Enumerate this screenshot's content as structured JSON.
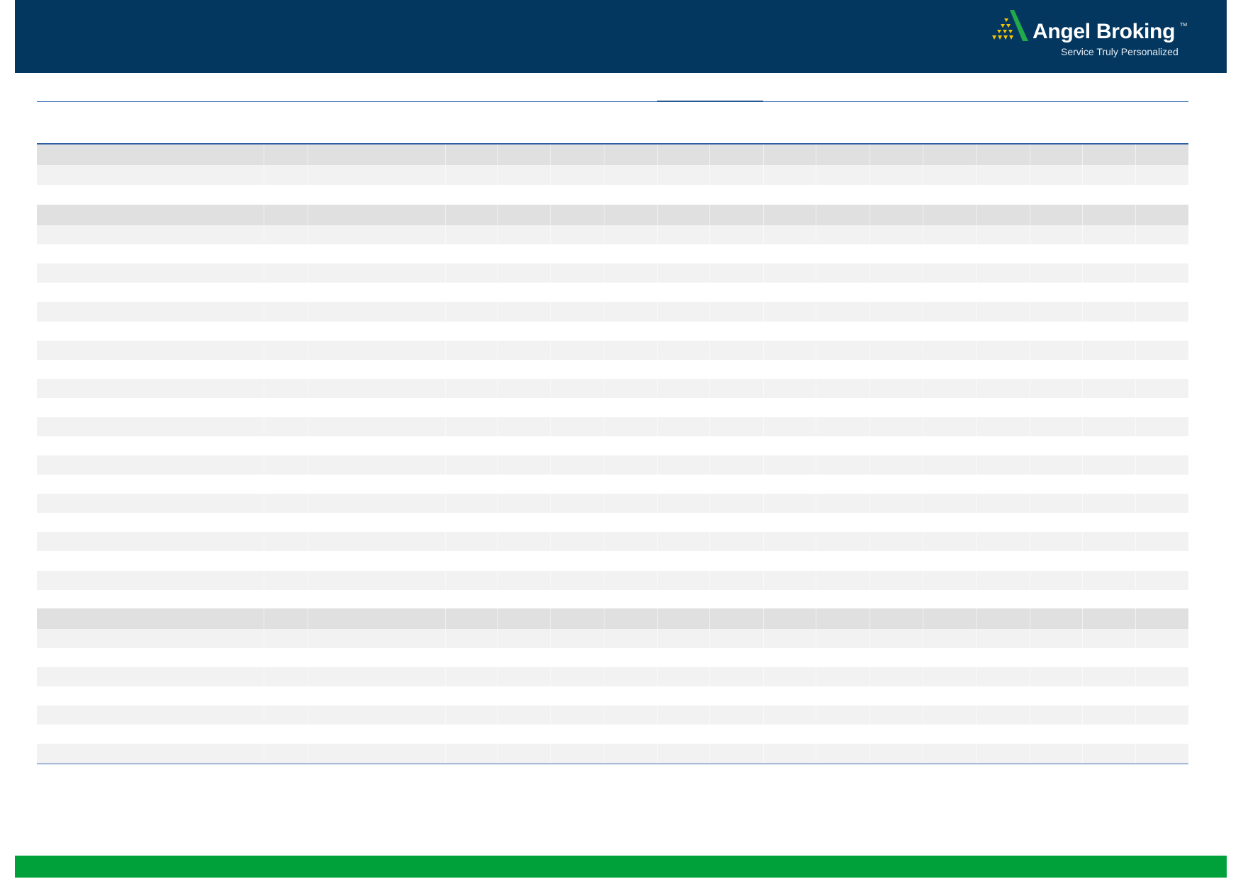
{
  "header": {
    "logo": {
      "title": "Angel Broking",
      "trademark": "TM",
      "tagline": "Service Truly Personalized",
      "colors": {
        "mark_green": "#22a94a",
        "mark_gold": "#f2c500"
      }
    },
    "background_color": "#03375f"
  },
  "footer": {
    "background_color": "#00a13a"
  }
}
